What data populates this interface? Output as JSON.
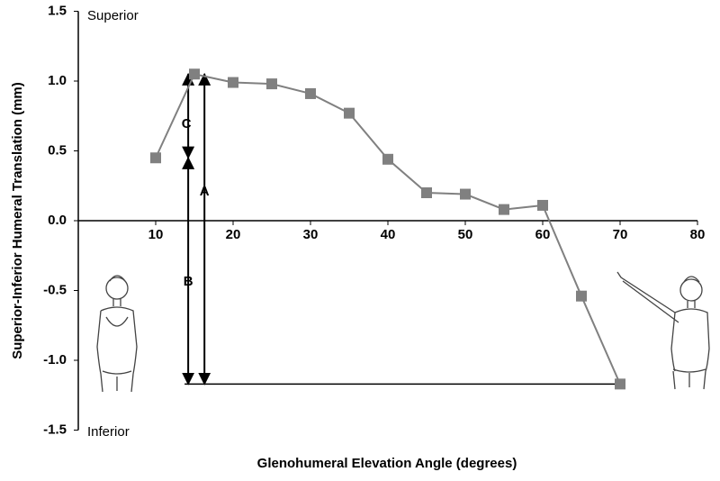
{
  "chart_data": {
    "type": "line",
    "x_label": "Glenohumeral Elevation Angle (degrees)",
    "y_label": "Superior-Inferior Humeral Translation (mm)",
    "annotations": {
      "top": "Superior",
      "bottom": "Inferior",
      "a": "A",
      "b": "B",
      "c": "C"
    },
    "x": [
      10,
      15,
      20,
      25,
      30,
      35,
      40,
      45,
      50,
      55,
      60,
      65,
      70
    ],
    "values": [
      0.45,
      1.05,
      0.99,
      0.98,
      0.91,
      0.77,
      0.44,
      0.2,
      0.19,
      0.08,
      0.11,
      -0.54,
      -1.17
    ],
    "color": "#808080",
    "xlim": [
      0,
      80
    ],
    "xticks": [
      10,
      20,
      30,
      40,
      50,
      60,
      70,
      80
    ],
    "ylim": [
      -1.5,
      1.5
    ],
    "yticks": [
      1.5,
      {
        "value": 1,
        "label": "1.0"
      },
      0.5,
      {
        "value": 0,
        "label": "0.0"
      },
      -0.5,
      {
        "value": -1,
        "label": "-1.0"
      },
      -1.5
    ]
  }
}
